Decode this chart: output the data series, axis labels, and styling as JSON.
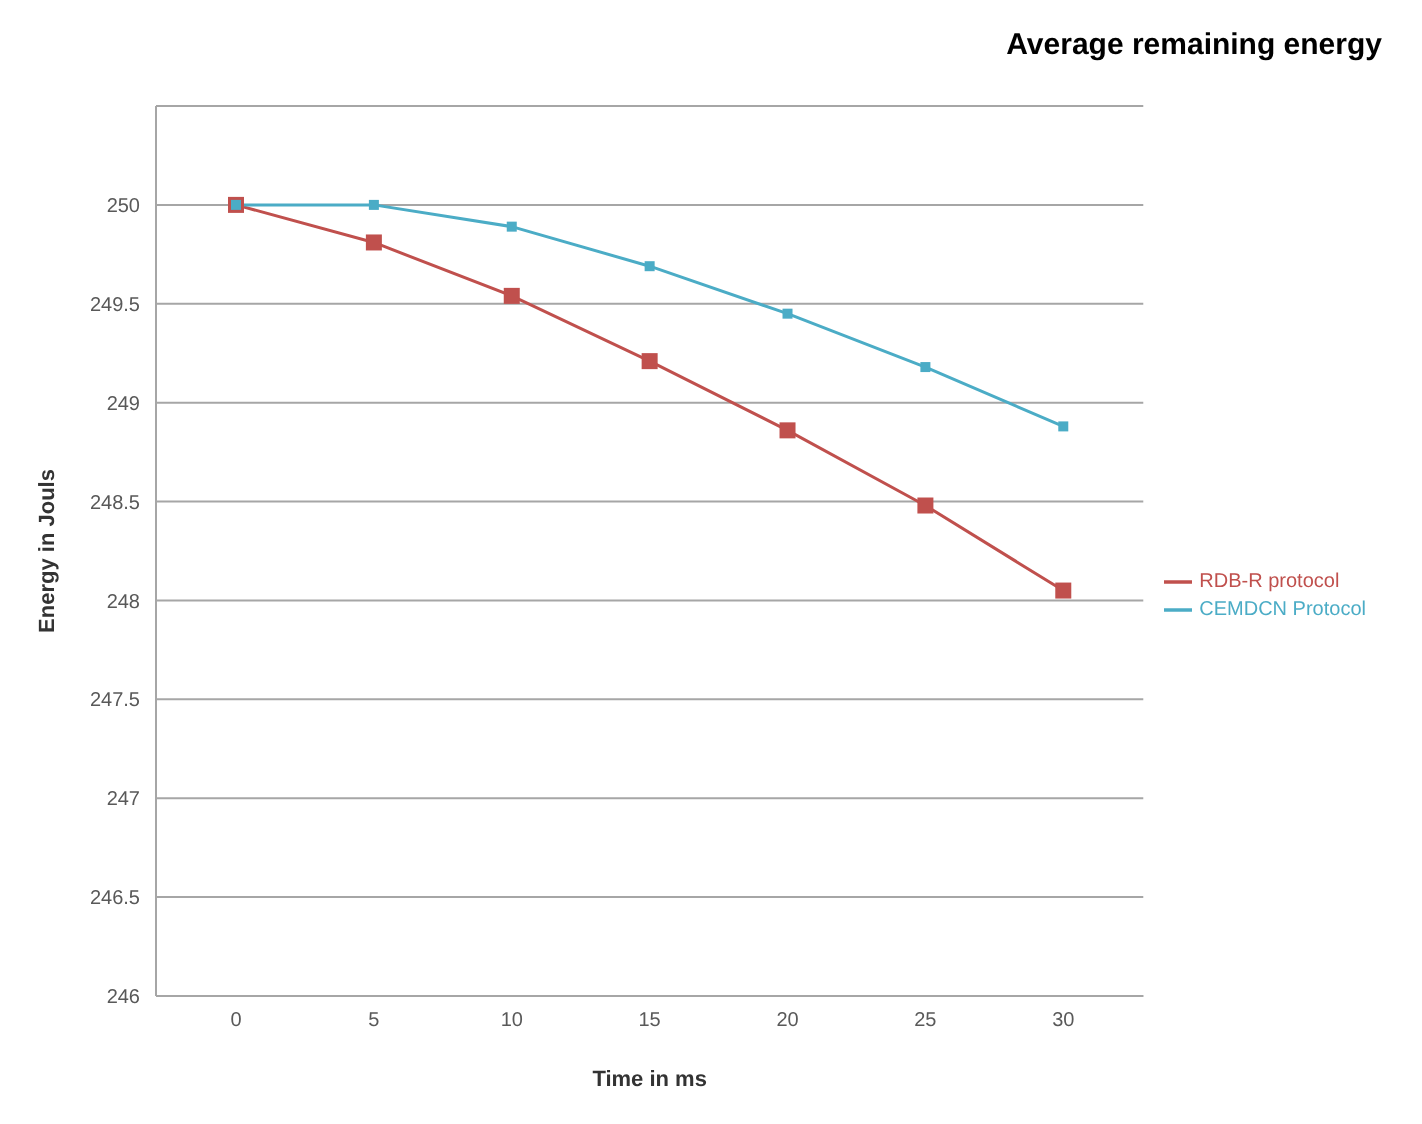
{
  "chart_data": {
    "type": "line",
    "title": "Average remaining energy",
    "xlabel": "Time in ms",
    "ylabel": "Energy in Jouls",
    "categories": [
      "0",
      "5",
      "10",
      "15",
      "20",
      "25",
      "30"
    ],
    "series": [
      {
        "name": "RDB-R protocol",
        "color": "#c0504d",
        "values": [
          250,
          249.81,
          249.54,
          249.21,
          248.86,
          248.48,
          248.05
        ]
      },
      {
        "name": "CEMDCN Protocol",
        "color": "#4bacc6",
        "values": [
          250,
          250,
          249.89,
          249.69,
          249.45,
          249.18,
          248.88
        ]
      }
    ],
    "ylim": [
      246,
      250.5
    ],
    "yticks": [
      246,
      246.5,
      247,
      247.5,
      248,
      248.5,
      249,
      249.5,
      250
    ],
    "grid": "y",
    "legend": "right",
    "marker": "square",
    "line_style": "solid"
  }
}
